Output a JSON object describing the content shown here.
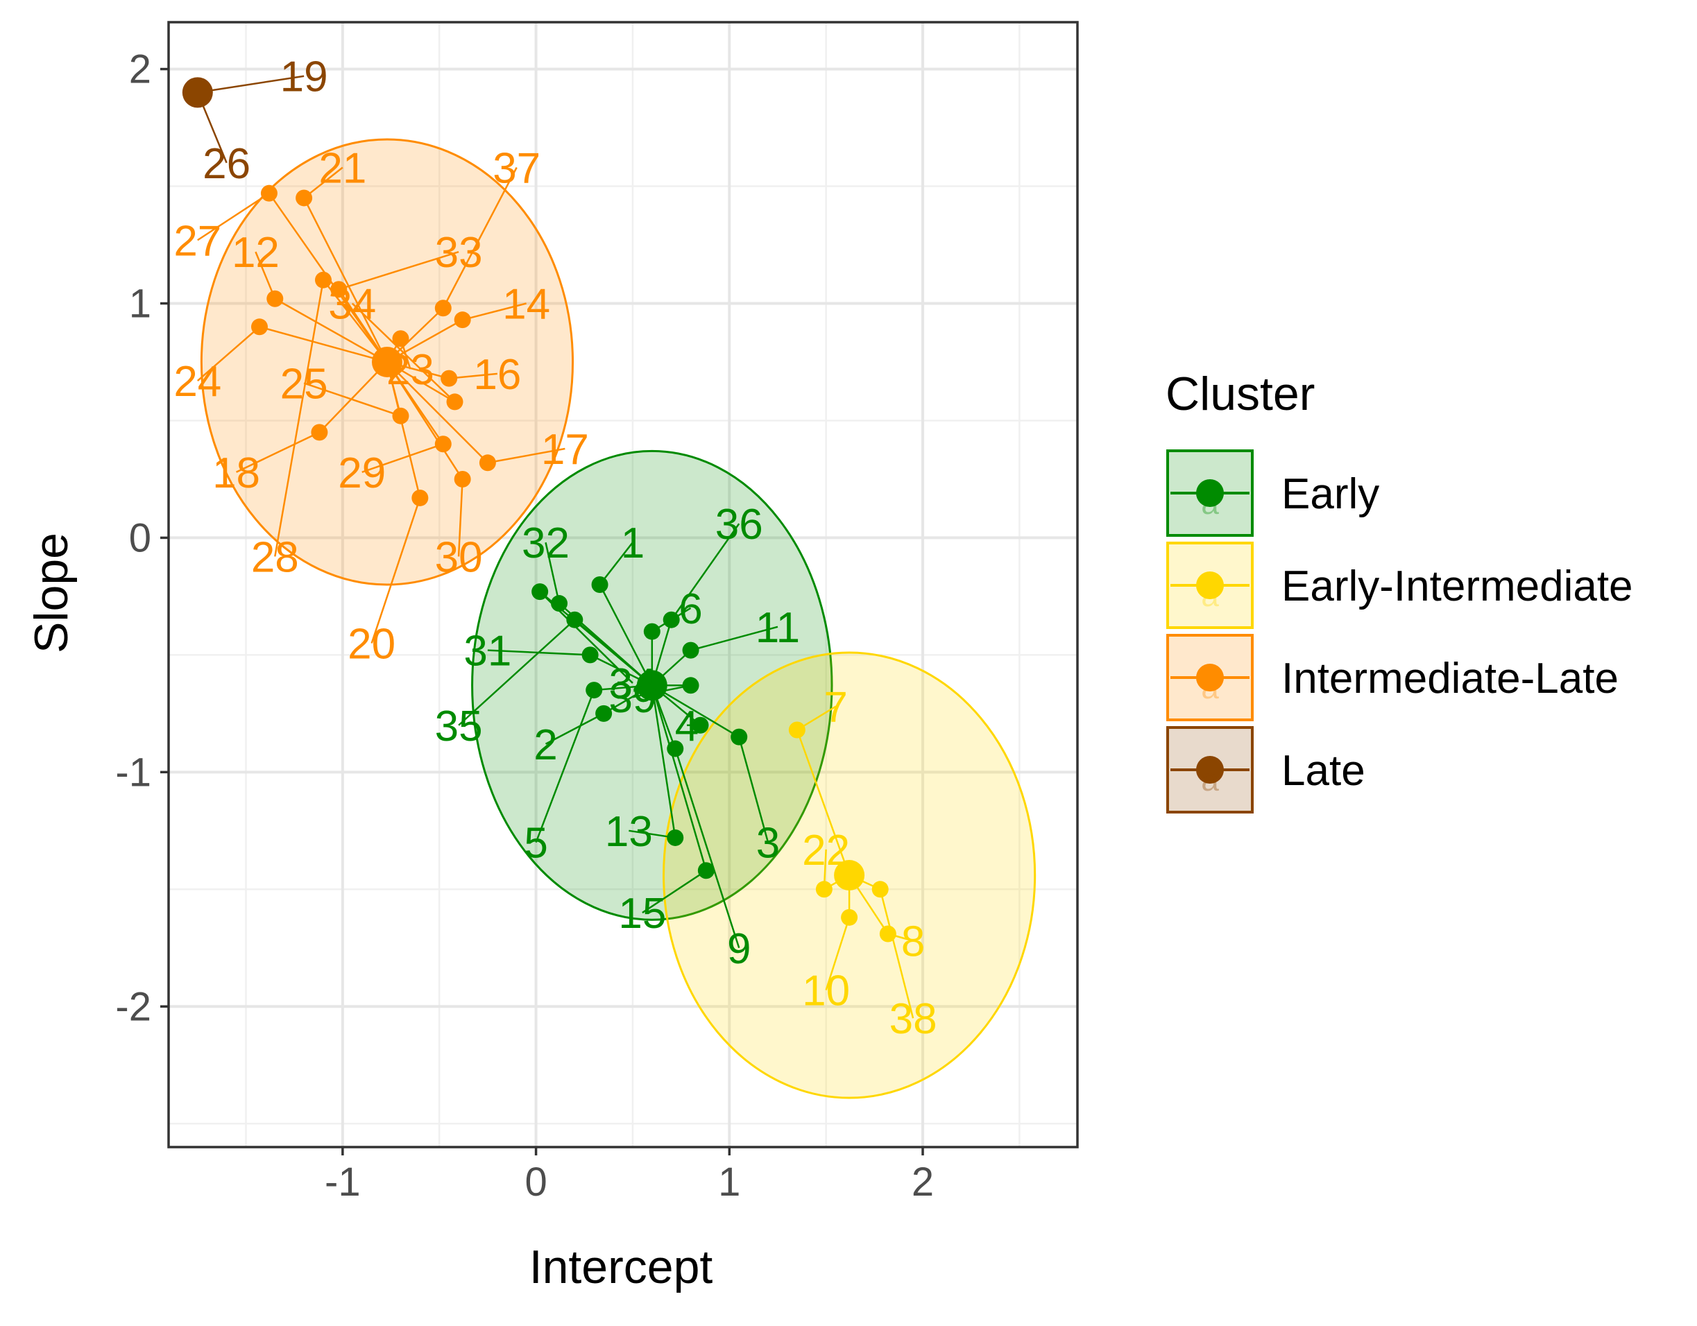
{
  "chart_data": {
    "type": "scatter",
    "title": "",
    "xlabel": "Intercept",
    "ylabel": "Slope",
    "xlim": [
      -1.9,
      2.8
    ],
    "ylim": [
      -2.6,
      2.2
    ],
    "x_ticks": [
      -1,
      0,
      1,
      2
    ],
    "y_ticks": [
      2,
      1,
      0,
      -1,
      -2
    ],
    "x_tick_labels": [
      "-1",
      "0",
      "1",
      "2"
    ],
    "y_tick_labels": [
      "2",
      "1",
      "0",
      "-1",
      "-2"
    ],
    "grid": true,
    "legend": {
      "title": "Cluster",
      "position": "right",
      "key_glyph": "a"
    },
    "series": [
      {
        "name": "Early",
        "color": "#008B00",
        "centroid": [
          0.6,
          -0.63
        ],
        "ellipse": {
          "rx": 0.93,
          "ry": 1.0
        },
        "points": [
          {
            "label": "1",
            "x": 0.33,
            "y": -0.2,
            "label_x": 0.5,
            "label_y": -0.02
          },
          {
            "label": "2",
            "x": 0.35,
            "y": -0.75,
            "label_x": 0.05,
            "label_y": -0.88
          },
          {
            "label": "3",
            "x": 1.05,
            "y": -0.85,
            "label_x": 1.2,
            "label_y": -1.3
          },
          {
            "label": "4",
            "x": 0.85,
            "y": -0.8,
            "label_x": 0.78,
            "label_y": -0.8
          },
          {
            "label": "5",
            "x": 0.3,
            "y": -0.65,
            "label_x": 0.0,
            "label_y": -1.3
          },
          {
            "label": "6",
            "x": 0.6,
            "y": -0.4,
            "label_x": 0.8,
            "label_y": -0.3
          },
          {
            "label": "11",
            "x": 0.8,
            "y": -0.48,
            "label_x": 1.25,
            "label_y": -0.38
          },
          {
            "label": "13",
            "x": 0.72,
            "y": -1.28,
            "label_x": 0.48,
            "label_y": -1.25
          },
          {
            "label": "15",
            "x": 0.88,
            "y": -1.42,
            "label_x": 0.55,
            "label_y": -1.6
          },
          {
            "label": "9",
            "x": 0.72,
            "y": -0.9,
            "label_x": 1.05,
            "label_y": -1.75
          },
          {
            "label": "31",
            "x": 0.28,
            "y": -0.5,
            "label_x": -0.25,
            "label_y": -0.48
          },
          {
            "label": "32",
            "x": 0.12,
            "y": -0.28,
            "label_x": 0.05,
            "label_y": -0.02
          },
          {
            "label": "34",
            "x": 0.02,
            "y": -0.23,
            "label_x": 0.5,
            "label_y": -0.62
          },
          {
            "label": "35",
            "x": 0.2,
            "y": -0.35,
            "label_x": -0.4,
            "label_y": -0.8
          },
          {
            "label": "36",
            "x": 0.7,
            "y": -0.35,
            "label_x": 1.05,
            "label_y": 0.06
          },
          {
            "label": "39",
            "x": 0.8,
            "y": -0.63,
            "label_x": 0.5,
            "label_y": -0.68
          }
        ]
      },
      {
        "name": "Early-Intermediate",
        "color": "#FFD700",
        "centroid": [
          1.62,
          -1.44
        ],
        "ellipse": {
          "rx": 0.96,
          "ry": 0.95
        },
        "points": [
          {
            "label": "7",
            "x": 1.35,
            "y": -0.82,
            "label_x": 1.55,
            "label_y": -0.72
          },
          {
            "label": "8",
            "x": 1.82,
            "y": -1.69,
            "label_x": 1.95,
            "label_y": -1.72
          },
          {
            "label": "10",
            "x": 1.62,
            "y": -1.62,
            "label_x": 1.5,
            "label_y": -1.93
          },
          {
            "label": "22",
            "x": 1.49,
            "y": -1.5,
            "label_x": 1.5,
            "label_y": -1.33
          },
          {
            "label": "38",
            "x": 1.78,
            "y": -1.5,
            "label_x": 1.95,
            "label_y": -2.05
          }
        ]
      },
      {
        "name": "Intermediate-Late",
        "color": "#FF8C00",
        "centroid": [
          -0.77,
          0.75
        ],
        "ellipse": {
          "rx": 0.96,
          "ry": 0.95
        },
        "points": [
          {
            "label": "12",
            "x": -1.35,
            "y": 1.02,
            "label_x": -1.45,
            "label_y": 1.22
          },
          {
            "label": "14",
            "x": -0.38,
            "y": 0.93,
            "label_x": -0.05,
            "label_y": 1.0
          },
          {
            "label": "16",
            "x": -0.45,
            "y": 0.68,
            "label_x": -0.2,
            "label_y": 0.7
          },
          {
            "label": "17",
            "x": -0.25,
            "y": 0.32,
            "label_x": 0.15,
            "label_y": 0.38
          },
          {
            "label": "18",
            "x": -1.12,
            "y": 0.45,
            "label_x": -1.55,
            "label_y": 0.28
          },
          {
            "label": "20",
            "x": -0.6,
            "y": 0.17,
            "label_x": -0.85,
            "label_y": -0.45
          },
          {
            "label": "21",
            "x": -1.2,
            "y": 1.45,
            "label_x": -1.0,
            "label_y": 1.58
          },
          {
            "label": "23",
            "x": -0.7,
            "y": 0.85,
            "label_x": -0.65,
            "label_y": 0.72
          },
          {
            "label": "24",
            "x": -1.43,
            "y": 0.9,
            "label_x": -1.75,
            "label_y": 0.67
          },
          {
            "label": "25",
            "x": -0.7,
            "y": 0.52,
            "label_x": -1.2,
            "label_y": 0.66
          },
          {
            "label": "27",
            "x": -1.38,
            "y": 1.47,
            "label_x": -1.75,
            "label_y": 1.27
          },
          {
            "label": "28",
            "x": -1.1,
            "y": 1.1,
            "label_x": -1.35,
            "label_y": -0.08
          },
          {
            "label": "29",
            "x": -0.48,
            "y": 0.4,
            "label_x": -0.9,
            "label_y": 0.28
          },
          {
            "label": "30",
            "x": -0.38,
            "y": 0.25,
            "label_x": -0.4,
            "label_y": -0.08
          },
          {
            "label": "33",
            "x": -1.02,
            "y": 1.06,
            "label_x": -0.4,
            "label_y": 1.22
          },
          {
            "label": "34",
            "x": -0.42,
            "y": 0.58,
            "label_x": -0.95,
            "label_y": 1.0
          },
          {
            "label": "37",
            "x": -0.48,
            "y": 0.98,
            "label_x": -0.1,
            "label_y": 1.58
          }
        ]
      },
      {
        "name": "Late",
        "color": "#8B4500",
        "centroid": [
          -1.75,
          1.9
        ],
        "ellipse": null,
        "points": [
          {
            "label": "19",
            "x": -1.75,
            "y": 1.9,
            "label_x": -1.2,
            "label_y": 1.97
          },
          {
            "label": "26",
            "x": -1.75,
            "y": 1.9,
            "label_x": -1.6,
            "label_y": 1.6
          }
        ]
      }
    ]
  }
}
